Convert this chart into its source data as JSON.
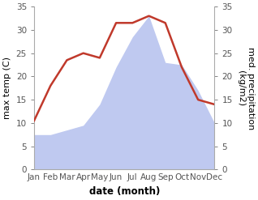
{
  "months": [
    "Jan",
    "Feb",
    "Mar",
    "Apr",
    "May",
    "Jun",
    "Jul",
    "Aug",
    "Sep",
    "Oct",
    "Nov",
    "Dec"
  ],
  "temp": [
    10.5,
    18.0,
    23.5,
    25.0,
    24.0,
    31.5,
    31.5,
    33.0,
    31.5,
    22.0,
    15.0,
    14.0
  ],
  "precip": [
    7.5,
    7.5,
    8.5,
    9.5,
    14.0,
    22.0,
    28.5,
    33.0,
    23.0,
    22.5,
    17.0,
    10.0
  ],
  "temp_color": "#c0392b",
  "precip_fill_color": "#bfc9f0",
  "ylim_left": [
    0,
    35
  ],
  "ylim_right": [
    0,
    35
  ],
  "ylabel_left": "max temp (C)",
  "ylabel_right": "med. precipitation (kg/m2)",
  "xlabel": "date (month)",
  "yticks": [
    0,
    5,
    10,
    15,
    20,
    25,
    30,
    35
  ],
  "tick_fontsize": 7.5,
  "label_fontsize": 8.0,
  "xlabel_fontsize": 8.5,
  "linewidth": 1.8,
  "spine_color": "#aaaaaa",
  "tick_color": "#555555"
}
